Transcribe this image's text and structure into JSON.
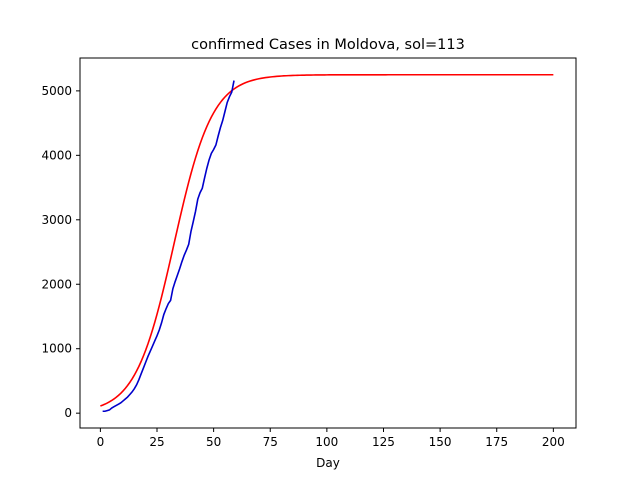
{
  "chart_data": {
    "type": "line",
    "title": "confirmed Cases in Moldova, sol=113",
    "xlabel": "Day",
    "ylabel": "",
    "xlim": [
      -9,
      210
    ],
    "ylim": [
      -230,
      5510
    ],
    "xticks": [
      0,
      25,
      50,
      75,
      100,
      125,
      150,
      175,
      200
    ],
    "yticks": [
      0,
      1000,
      2000,
      3000,
      4000,
      5000
    ],
    "grid": false,
    "legend": "none",
    "series": [
      {
        "color": "#ff0000",
        "logistic": {
          "L": 5250,
          "k": 0.118,
          "x0": 32.5,
          "x_end": 200
        }
      },
      {
        "color": "#0000cc",
        "x": [
          1,
          2,
          3,
          4,
          5,
          6,
          7,
          8,
          9,
          10,
          11,
          12,
          13,
          14,
          15,
          16,
          17,
          18,
          19,
          20,
          21,
          22,
          23,
          24,
          25,
          26,
          27,
          28,
          29,
          30,
          31,
          32,
          33,
          34,
          35,
          36,
          37,
          38,
          39,
          40,
          41,
          42,
          43,
          44,
          45,
          46,
          47,
          48,
          49,
          50,
          51,
          52,
          53,
          54,
          55,
          56,
          57,
          58,
          59
        ],
        "y": [
          30,
          30,
          40,
          50,
          80,
          100,
          120,
          140,
          160,
          190,
          220,
          250,
          290,
          330,
          380,
          440,
          520,
          610,
          700,
          790,
          880,
          960,
          1040,
          1120,
          1200,
          1290,
          1400,
          1530,
          1620,
          1700,
          1750,
          1930,
          2040,
          2140,
          2240,
          2350,
          2450,
          2530,
          2620,
          2820,
          2970,
          3130,
          3320,
          3420,
          3490,
          3650,
          3800,
          3930,
          4030,
          4090,
          4160,
          4300,
          4430,
          4540,
          4680,
          4820,
          4910,
          4980,
          5160
        ]
      }
    ]
  }
}
